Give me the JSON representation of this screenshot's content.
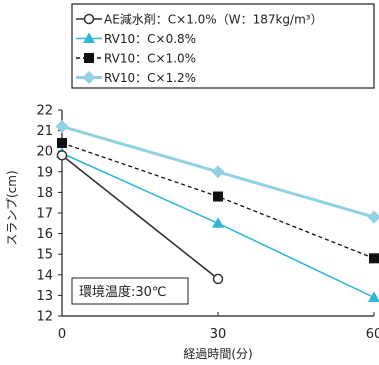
{
  "chart_data": {
    "type": "line",
    "x": [
      0,
      30,
      60
    ],
    "xlabel": "経過時間(分)",
    "ylabel": "スランプ(cm)",
    "xlim": [
      0,
      60
    ],
    "ylim": [
      12,
      22
    ],
    "x_ticks": [
      "0",
      "30",
      "60"
    ],
    "y_ticks": [
      "12",
      "13",
      "14",
      "15",
      "16",
      "17",
      "18",
      "19",
      "20",
      "21",
      "22"
    ],
    "annotation": "環境温度:30℃",
    "legend_position": "top",
    "series": [
      {
        "name": "AE減水剤：C×1.0%（W：187kg/m³）",
        "values": [
          19.8,
          13.8,
          null
        ],
        "color": "#333333",
        "marker": "circle-open",
        "line": "solid"
      },
      {
        "name": "RV10：C×0.8%",
        "values": [
          19.9,
          16.5,
          12.9
        ],
        "color": "#33b7d9",
        "marker": "triangle",
        "line": "solid"
      },
      {
        "name": "RV10：C×1.0%",
        "values": [
          20.4,
          17.8,
          14.8
        ],
        "color": "#111111",
        "marker": "square",
        "line": "dashed"
      },
      {
        "name": "RV10：C×1.2%",
        "values": [
          21.2,
          19.0,
          16.8
        ],
        "color": "#92d0e4",
        "marker": "diamond",
        "line": "solid"
      }
    ]
  }
}
